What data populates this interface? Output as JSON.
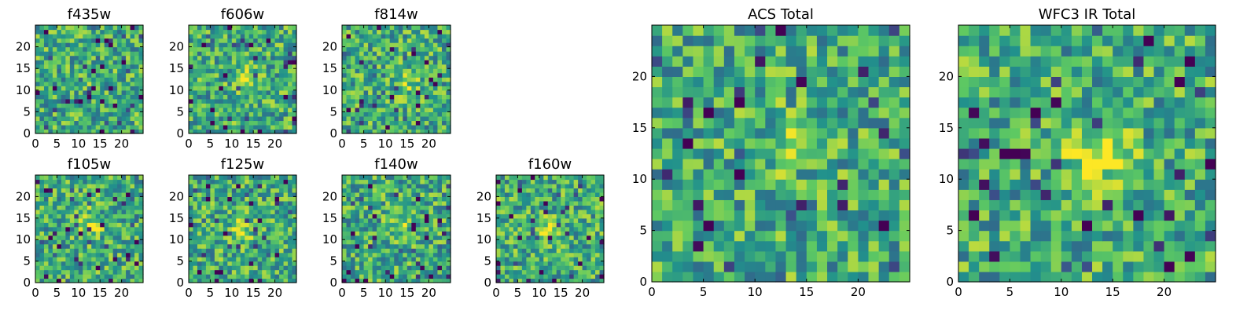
{
  "figure": {
    "colormap": [
      "#440154",
      "#3b528b",
      "#21918c",
      "#5ec962",
      "#fde725"
    ]
  },
  "chart_data": [
    {
      "type": "heatmap",
      "title": "f435w",
      "size": 25,
      "xticks": [
        0,
        5,
        10,
        15,
        20
      ],
      "yticks": [
        0,
        5,
        10,
        15,
        20
      ],
      "xlim": [
        0,
        25
      ],
      "ylim": [
        0,
        25
      ],
      "grid": false,
      "source_x": 13,
      "source_y": 12,
      "source_strength": 0.1,
      "noise_seed": 11
    },
    {
      "type": "heatmap",
      "title": "f606w",
      "size": 25,
      "xticks": [
        0,
        5,
        10,
        15,
        20
      ],
      "yticks": [
        0,
        5,
        10,
        15,
        20
      ],
      "xlim": [
        0,
        25
      ],
      "ylim": [
        0,
        25
      ],
      "grid": false,
      "source_x": 13,
      "source_y": 12,
      "source_strength": 0.45,
      "noise_seed": 22
    },
    {
      "type": "heatmap",
      "title": "f814w",
      "size": 25,
      "xticks": [
        0,
        5,
        10,
        15,
        20
      ],
      "yticks": [
        0,
        5,
        10,
        15,
        20
      ],
      "xlim": [
        0,
        25
      ],
      "ylim": [
        0,
        25
      ],
      "grid": false,
      "source_x": 14,
      "source_y": 12,
      "source_strength": 0.4,
      "noise_seed": 33
    },
    {
      "type": "heatmap",
      "title": "f105w",
      "size": 25,
      "xticks": [
        0,
        5,
        10,
        15,
        20
      ],
      "yticks": [
        0,
        5,
        10,
        15,
        20
      ],
      "xlim": [
        0,
        25
      ],
      "ylim": [
        0,
        25
      ],
      "grid": false,
      "source_x": 12,
      "source_y": 13,
      "source_strength": 0.55,
      "noise_seed": 44
    },
    {
      "type": "heatmap",
      "title": "f125w",
      "size": 25,
      "xticks": [
        0,
        5,
        10,
        15,
        20
      ],
      "yticks": [
        0,
        5,
        10,
        15,
        20
      ],
      "xlim": [
        0,
        25
      ],
      "ylim": [
        0,
        25
      ],
      "grid": false,
      "source_x": 12,
      "source_y": 12,
      "source_strength": 0.45,
      "noise_seed": 55
    },
    {
      "type": "heatmap",
      "title": "f140w",
      "size": 25,
      "xticks": [
        0,
        5,
        10,
        15,
        20
      ],
      "yticks": [
        0,
        5,
        10,
        15,
        20
      ],
      "xlim": [
        0,
        25
      ],
      "ylim": [
        0,
        25
      ],
      "grid": false,
      "source_x": 13,
      "source_y": 13,
      "source_strength": 0.5,
      "noise_seed": 66
    },
    {
      "type": "heatmap",
      "title": "f160w",
      "size": 25,
      "xticks": [
        0,
        5,
        10,
        15,
        20
      ],
      "yticks": [
        0,
        5,
        10,
        15,
        20
      ],
      "xlim": [
        0,
        25
      ],
      "ylim": [
        0,
        25
      ],
      "grid": false,
      "source_x": 12,
      "source_y": 12,
      "source_strength": 0.6,
      "noise_seed": 77
    },
    {
      "type": "heatmap",
      "title": "ACS Total",
      "size": 25,
      "xticks": [
        0,
        5,
        10,
        15,
        20
      ],
      "yticks": [
        0,
        5,
        10,
        15,
        20
      ],
      "xlim": [
        0,
        25
      ],
      "ylim": [
        0,
        25
      ],
      "grid": false,
      "source_x": 13,
      "source_y": 13,
      "source_strength": 0.3,
      "noise_seed": 88
    },
    {
      "type": "heatmap",
      "title": "WFC3 IR Total",
      "size": 25,
      "xticks": [
        0,
        5,
        10,
        15,
        20
      ],
      "yticks": [
        0,
        5,
        10,
        15,
        20
      ],
      "xlim": [
        0,
        25
      ],
      "ylim": [
        0,
        25
      ],
      "grid": false,
      "source_x": 13,
      "source_y": 12,
      "source_strength": 0.85,
      "noise_seed": 99
    }
  ]
}
